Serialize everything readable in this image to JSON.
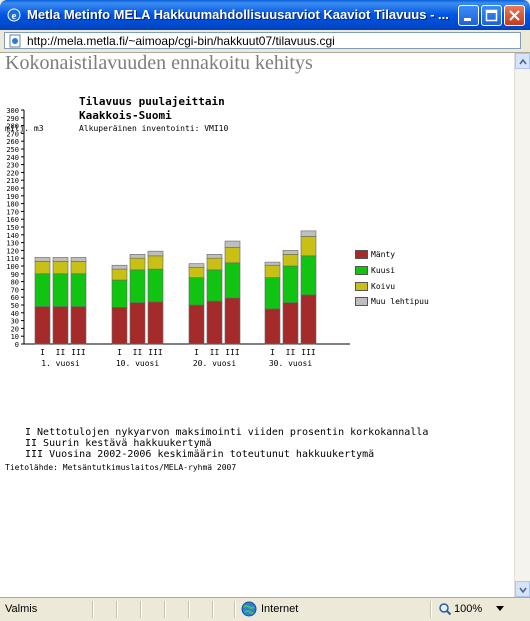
{
  "window": {
    "title": "Metla Metinfo MELA Hakkuumahdollisuusarviot Kaaviot Tilavuus - ...",
    "url": "http://mela.metla.fi/~aimoap/cgi-bin/hakkuut07/tilavuus.cgi"
  },
  "page": {
    "heading": "Kokonaistilavuuden ennakoitu kehitys",
    "chart_title_line1": "Tilavuus puulajeittain",
    "chart_title_line2": "Kaakkois-Suomi",
    "unit_label": "milj. m3",
    "subtitle": "Alkuperäinen inventointi: VMI10",
    "notes": [
      "I   Nettotulojen nykyarvon maksimointi viiden prosentin korkokannalla",
      "II  Suurin kestävä hakkuukertymä",
      "III Vuosina 2002-2006 keskimäärin toteutunut hakkuukertymä"
    ],
    "source": "Tietolähde: Metsäntutkimuslaitos/MELA-ryhmä 2007"
  },
  "status": {
    "left_text": "Valmis",
    "zone_text": "Internet",
    "zoom_text": "100%"
  },
  "colors": {
    "mänty": "#a52a2a",
    "kuusi": "#11c411",
    "koivu": "#c8c014",
    "muu": "#bebebe"
  },
  "chart_data": {
    "type": "bar",
    "stacked": true,
    "title": "Tilavuus puulajeittain Kaakkois-Suomi",
    "ylabel": "milj. m3",
    "ylim": [
      0,
      300
    ],
    "yticks": [
      0,
      10,
      20,
      30,
      40,
      50,
      60,
      70,
      80,
      90,
      100,
      110,
      120,
      130,
      140,
      150,
      160,
      170,
      180,
      190,
      200,
      210,
      220,
      230,
      240,
      250,
      260,
      270,
      280,
      290,
      300
    ],
    "groups": [
      "1. vuosi",
      "10. vuosi",
      "20. vuosi",
      "30. vuosi"
    ],
    "bar_labels": [
      "I",
      "II",
      "III"
    ],
    "legend_position": "right",
    "series": [
      {
        "name": "Mänty",
        "values": [
          48,
          48,
          48,
          47,
          53,
          54,
          50,
          55,
          59,
          45,
          53,
          63
        ]
      },
      {
        "name": "Kuusi",
        "values": [
          42,
          42,
          42,
          35,
          42,
          42,
          35,
          40,
          45,
          40,
          47,
          50
        ]
      },
      {
        "name": "Koivu",
        "values": [
          16,
          16,
          16,
          14,
          15,
          17,
          13,
          15,
          20,
          16,
          15,
          25
        ]
      },
      {
        "name": "Muu lehtipuu",
        "values": [
          5,
          5,
          5,
          5,
          5,
          6,
          5,
          5,
          8,
          4,
          5,
          7
        ]
      }
    ]
  }
}
